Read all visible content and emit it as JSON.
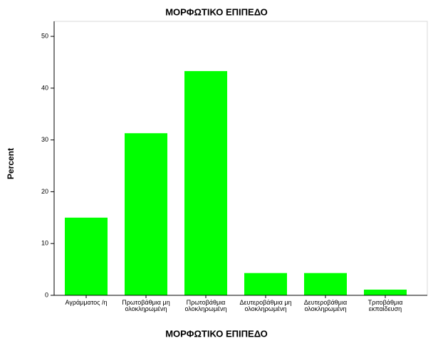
{
  "chart_data": {
    "type": "bar",
    "title": "ΜΟΡΦΩΤΙΚΟ ΕΠΙΠΕΔΟ",
    "x_label": "ΜΟΡΦΩΤΙΚΟ ΕΠΙΠΕΔΟ",
    "y_label": "Percent",
    "categories": [
      "Αγράμματος /η",
      "Πρωτοβάθμια μη ολοκληρωμένη",
      "Πρωτοβάθμια ολοκληρωμένη",
      "Δευτεροβάθμια μη ολοκληρωμένη",
      "Δευτεροβάθμια ολοκληρωμένη",
      "Τριτοβάθμια εκπαίδευση"
    ],
    "values": [
      15.0,
      31.3,
      43.3,
      4.3,
      4.3,
      1.1
    ],
    "color": "#00ff00",
    "ylim": [
      0,
      52.9
    ],
    "yticks": [
      0,
      10,
      20,
      30,
      40,
      50
    ],
    "grid": false
  }
}
